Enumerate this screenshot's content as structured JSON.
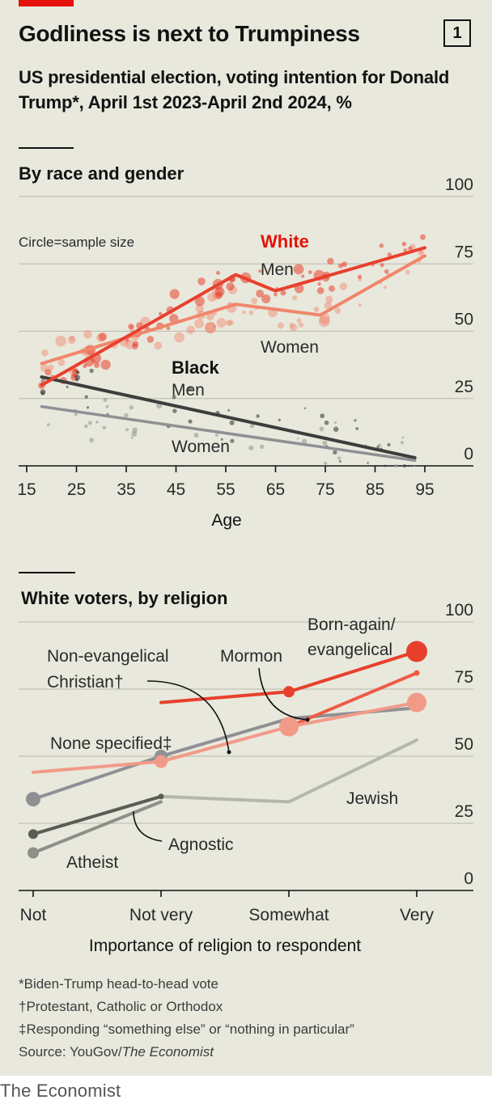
{
  "header": {
    "title": "Godliness is next to Trumpiness",
    "chart_number": "1",
    "subtitle": "US presidential election, voting intention for Donald Trump*, April 1st 2023-April 2nd 2024, %"
  },
  "footer": {
    "note1": "*Biden-Trump head-to-head vote",
    "note2": "†Protestant, Catholic or Orthodox",
    "note3": "‡Responding “something else” or “nothing in particular”",
    "source_prefix": "Source: YouGov/",
    "source_italic": "The Economist"
  },
  "brand": "The Economist",
  "colors": {
    "white_men": "#e8402c",
    "white_women": "#f0866b",
    "black_men": "#3d3d3d",
    "black_women": "#8f9094",
    "mormon": "#e8402c",
    "evangelical": "#ef5a45",
    "non_evangelical": "#f29a88",
    "none_specified": "#8f9094",
    "jewish": "#b6b7ab",
    "agnostic": "#5b5c55",
    "atheist": "#8e8f88"
  },
  "chart_data": [
    {
      "type": "line",
      "panel_title": "By race and gender",
      "note": "Circle=sample size",
      "xlabel": "Age",
      "xlim": [
        15,
        100
      ],
      "ylim": [
        0,
        100
      ],
      "x_ticks": [
        15,
        25,
        35,
        45,
        55,
        65,
        75,
        85,
        95
      ],
      "y_ticks": [
        0,
        25,
        50,
        75,
        100
      ],
      "group_labels": {
        "white": "White",
        "black": "Black"
      },
      "series": [
        {
          "key": "white_men",
          "name": "Men",
          "group": "white",
          "x": [
            18,
            57,
            65,
            95
          ],
          "values": [
            30,
            71,
            65,
            81
          ]
        },
        {
          "key": "white_women",
          "name": "Women",
          "group": "white",
          "x": [
            18,
            57,
            74,
            95
          ],
          "values": [
            38,
            60,
            56,
            78
          ]
        },
        {
          "key": "black_men",
          "name": "Men",
          "group": "black",
          "x": [
            18,
            93
          ],
          "values": [
            33,
            3
          ]
        },
        {
          "key": "black_women",
          "name": "Women",
          "group": "black",
          "x": [
            18,
            93
          ],
          "values": [
            22,
            2
          ]
        }
      ]
    },
    {
      "type": "line",
      "panel_title": "White voters, by religion",
      "xlabel": "Importance of religion to respondent",
      "categories": [
        "Not",
        "Not very",
        "Somewhat",
        "Very"
      ],
      "ylim": [
        0,
        100
      ],
      "y_ticks": [
        0,
        25,
        50,
        75,
        100
      ],
      "series": [
        {
          "key": "mormon",
          "name": "Mormon",
          "x": [
            1,
            2,
            3
          ],
          "values": [
            70,
            74,
            89
          ]
        },
        {
          "key": "evangelical",
          "name": "Born-again/ evangelical",
          "x": [
            1,
            2,
            3
          ],
          "values": [
            null,
            null,
            81
          ]
        },
        {
          "key": "non_evangelical",
          "name": "Non-evangelical Christian†",
          "x": [
            0,
            1,
            2,
            3
          ],
          "values": [
            44,
            48,
            61,
            70
          ]
        },
        {
          "key": "none_specified",
          "name": "None specified‡",
          "x": [
            0,
            1,
            2,
            3
          ],
          "values": [
            34,
            50,
            64,
            68
          ]
        },
        {
          "key": "jewish",
          "name": "Jewish",
          "x": [
            1,
            2,
            3
          ],
          "values": [
            35,
            33,
            56
          ]
        },
        {
          "key": "agnostic",
          "name": "Agnostic",
          "x": [
            0,
            1
          ],
          "values": [
            21,
            35
          ]
        },
        {
          "key": "atheist",
          "name": "Atheist",
          "x": [
            0,
            1
          ],
          "values": [
            14,
            33
          ]
        }
      ]
    }
  ]
}
